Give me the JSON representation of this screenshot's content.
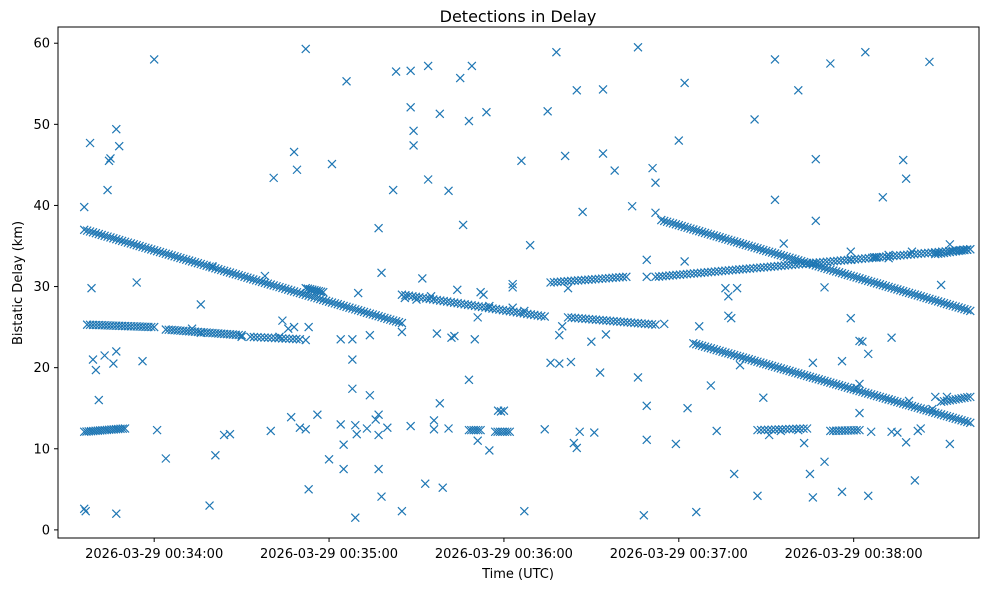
{
  "chart_data": {
    "type": "scatter",
    "title": "Detections in Delay",
    "xlabel": "Time (UTC)",
    "ylabel": "Bistatic Delay (km)",
    "marker": "x",
    "marker_color": "#1f77b4",
    "x_unit": "seconds after 2026-03-29 00:33:00",
    "xlim": [
      27,
      343
    ],
    "ylim": [
      -1,
      62
    ],
    "x_ticks": [
      {
        "value": 60,
        "label": "2026-03-29 00:34:00"
      },
      {
        "value": 120,
        "label": "2026-03-29 00:35:00"
      },
      {
        "value": 180,
        "label": "2026-03-29 00:36:00"
      },
      {
        "value": 240,
        "label": "2026-03-29 00:37:00"
      },
      {
        "value": 300,
        "label": "2026-03-29 00:38:00"
      }
    ],
    "y_ticks": [
      {
        "value": 0,
        "label": "0"
      },
      {
        "value": 10,
        "label": "10"
      },
      {
        "value": 20,
        "label": "20"
      },
      {
        "value": 30,
        "label": "30"
      },
      {
        "value": 40,
        "label": "40"
      },
      {
        "value": 50,
        "label": "50"
      },
      {
        "value": 60,
        "label": "60"
      }
    ],
    "tracks": [
      {
        "name": "track-a",
        "x_start": 36,
        "x_end": 145,
        "y_start": 37.0,
        "y_end": 25.5,
        "step": 1.0
      },
      {
        "name": "track-b",
        "x_start": 145,
        "x_end": 194,
        "y_start": 29.0,
        "y_end": 26.3,
        "step": 1.2
      },
      {
        "name": "track-c",
        "x_start": 234,
        "x_end": 340,
        "y_start": 38.2,
        "y_end": 27.0,
        "step": 1.0
      },
      {
        "name": "track-d",
        "x_start": 232,
        "x_end": 340,
        "y_start": 31.2,
        "y_end": 34.6,
        "step": 1.2
      },
      {
        "name": "track-e",
        "x_start": 245,
        "x_end": 340,
        "y_start": 23.0,
        "y_end": 13.2,
        "step": 1.0
      },
      {
        "name": "track-f",
        "x_start": 37,
        "x_end": 60,
        "y_start": 25.3,
        "y_end": 25.0,
        "step": 1.0
      },
      {
        "name": "track-g",
        "x_start": 64,
        "x_end": 90,
        "y_start": 24.7,
        "y_end": 24.0,
        "step": 1.0
      },
      {
        "name": "track-h",
        "x_start": 93,
        "x_end": 110,
        "y_start": 23.8,
        "y_end": 23.5,
        "step": 1.2
      },
      {
        "name": "track-i",
        "x_start": 36,
        "x_end": 50,
        "y_start": 12.1,
        "y_end": 12.5,
        "step": 0.8
      },
      {
        "name": "track-j",
        "x_start": 112,
        "x_end": 118,
        "y_start": 29.8,
        "y_end": 29.3,
        "step": 0.8
      },
      {
        "name": "track-k",
        "x_start": 168,
        "x_end": 172,
        "y_start": 12.3,
        "y_end": 12.3,
        "step": 0.8
      },
      {
        "name": "track-l",
        "x_start": 177,
        "x_end": 182,
        "y_start": 12.1,
        "y_end": 12.1,
        "step": 0.8
      },
      {
        "name": "track-m",
        "x_start": 196,
        "x_end": 222,
        "y_start": 30.5,
        "y_end": 31.2,
        "step": 1.2
      },
      {
        "name": "track-n",
        "x_start": 202,
        "x_end": 232,
        "y_start": 26.2,
        "y_end": 25.3,
        "step": 1.2
      },
      {
        "name": "track-o",
        "x_start": 267,
        "x_end": 284,
        "y_start": 12.3,
        "y_end": 12.5,
        "step": 1.2
      },
      {
        "name": "track-p",
        "x_start": 292,
        "x_end": 302,
        "y_start": 12.2,
        "y_end": 12.3,
        "step": 1.0
      },
      {
        "name": "track-q",
        "x_start": 328,
        "x_end": 340,
        "y_start": 34.0,
        "y_end": 34.6,
        "step": 1.0
      },
      {
        "name": "track-r",
        "x_start": 330,
        "x_end": 340,
        "y_start": 15.8,
        "y_end": 16.4,
        "step": 1.0
      }
    ],
    "scatter_points": [
      [
        36,
        39.8
      ],
      [
        36,
        2.6
      ],
      [
        36.5,
        2.3
      ],
      [
        38,
        47.7
      ],
      [
        39,
        21
      ],
      [
        40,
        19.7
      ],
      [
        38.5,
        29.8
      ],
      [
        41,
        16
      ],
      [
        43,
        21.5
      ],
      [
        44,
        41.9
      ],
      [
        44.5,
        45.5
      ],
      [
        45,
        45.8
      ],
      [
        46,
        20.5
      ],
      [
        47,
        22
      ],
      [
        47,
        49.4
      ],
      [
        48,
        47.3
      ],
      [
        47,
        2
      ],
      [
        54,
        30.5
      ],
      [
        56,
        20.8
      ],
      [
        60,
        58
      ],
      [
        61,
        12.3
      ],
      [
        64,
        8.8
      ],
      [
        79,
        3
      ],
      [
        81,
        9.2
      ],
      [
        80,
        32.5
      ],
      [
        84,
        11.7
      ],
      [
        86,
        11.8
      ],
      [
        76,
        27.8
      ],
      [
        73,
        24.8
      ],
      [
        76,
        24.3
      ],
      [
        90,
        23.8
      ],
      [
        98,
        31.3
      ],
      [
        101,
        43.4
      ],
      [
        100,
        12.2
      ],
      [
        106,
        24.8
      ],
      [
        107,
        13.9
      ],
      [
        108,
        46.6
      ],
      [
        109,
        44.4
      ],
      [
        110,
        12.6
      ],
      [
        108,
        25
      ],
      [
        104,
        25.8
      ],
      [
        103,
        23.8
      ],
      [
        112,
        59.3
      ],
      [
        112,
        12.4
      ],
      [
        113,
        5
      ],
      [
        112,
        23.4
      ],
      [
        113,
        25
      ],
      [
        116,
        14.2
      ],
      [
        120,
        8.7
      ],
      [
        121,
        45.1
      ],
      [
        124,
        13
      ],
      [
        125,
        10.5
      ],
      [
        126,
        55.3
      ],
      [
        125,
        7.5
      ],
      [
        124,
        23.5
      ],
      [
        128,
        23.5
      ],
      [
        128,
        21
      ],
      [
        128,
        17.4
      ],
      [
        129,
        12.9
      ],
      [
        129.5,
        11.8
      ],
      [
        130,
        29.2
      ],
      [
        129,
        1.5
      ],
      [
        133,
        12.5
      ],
      [
        134,
        16.6
      ],
      [
        134,
        24
      ],
      [
        136,
        13.6
      ],
      [
        137,
        7.5
      ],
      [
        137,
        11.7
      ],
      [
        137,
        37.2
      ],
      [
        137,
        14.2
      ],
      [
        138,
        31.7
      ],
      [
        138,
        4.1
      ],
      [
        140,
        12.6
      ],
      [
        142,
        41.9
      ],
      [
        143,
        56.5
      ],
      [
        145,
        2.3
      ],
      [
        145,
        24.4
      ],
      [
        146,
        28.6
      ],
      [
        148,
        56.6
      ],
      [
        148,
        52.1
      ],
      [
        149,
        49.2
      ],
      [
        149,
        47.4
      ],
      [
        148,
        12.8
      ],
      [
        150,
        28.4
      ],
      [
        152,
        31
      ],
      [
        153,
        5.7
      ],
      [
        154,
        43.2
      ],
      [
        154,
        57.2
      ],
      [
        155,
        28.8
      ],
      [
        156,
        12.4
      ],
      [
        156,
        13.5
      ],
      [
        157,
        24.2
      ],
      [
        158,
        15.6
      ],
      [
        158,
        51.3
      ],
      [
        159,
        5.2
      ],
      [
        161,
        41.8
      ],
      [
        162,
        23.7
      ],
      [
        163,
        23.9
      ],
      [
        161,
        12.5
      ],
      [
        164,
        29.6
      ],
      [
        165,
        55.7
      ],
      [
        166,
        37.6
      ],
      [
        168,
        18.5
      ],
      [
        168,
        50.4
      ],
      [
        169,
        57.2
      ],
      [
        170,
        23.5
      ],
      [
        171,
        11
      ],
      [
        171,
        26.2
      ],
      [
        172,
        29.3
      ],
      [
        173,
        29
      ],
      [
        174,
        51.5
      ],
      [
        175,
        9.8
      ],
      [
        175,
        27.6
      ],
      [
        178,
        14.7
      ],
      [
        179,
        14.6
      ],
      [
        180,
        14.7
      ],
      [
        183,
        29.9
      ],
      [
        183,
        30.3
      ],
      [
        186,
        45.5
      ],
      [
        187,
        2.3
      ],
      [
        189,
        35.1
      ],
      [
        183,
        27.4
      ],
      [
        187,
        27
      ],
      [
        194,
        12.4
      ],
      [
        195,
        51.6
      ],
      [
        196,
        20.6
      ],
      [
        199,
        24
      ],
      [
        199,
        20.5
      ],
      [
        198,
        58.9
      ],
      [
        200,
        25.1
      ],
      [
        201,
        46.1
      ],
      [
        202,
        29.8
      ],
      [
        203,
        20.7
      ],
      [
        204,
        10.7
      ],
      [
        205,
        54.2
      ],
      [
        205,
        10.1
      ],
      [
        207,
        39.2
      ],
      [
        206,
        12.1
      ],
      [
        210,
        23.2
      ],
      [
        211,
        12
      ],
      [
        214,
        46.4
      ],
      [
        213,
        19.4
      ],
      [
        214,
        54.3
      ],
      [
        215,
        24.1
      ],
      [
        218,
        44.3
      ],
      [
        224,
        39.9
      ],
      [
        226,
        18.8
      ],
      [
        226,
        59.5
      ],
      [
        228,
        1.8
      ],
      [
        229,
        11.1
      ],
      [
        229,
        15.3
      ],
      [
        229,
        31.2
      ],
      [
        229,
        33.3
      ],
      [
        231,
        44.6
      ],
      [
        232,
        42.8
      ],
      [
        232,
        39.1
      ],
      [
        235,
        25.4
      ],
      [
        239,
        10.6
      ],
      [
        240,
        48
      ],
      [
        242,
        33.1
      ],
      [
        242,
        55.1
      ],
      [
        243,
        15
      ],
      [
        246,
        2.2
      ],
      [
        247,
        25.1
      ],
      [
        251,
        17.8
      ],
      [
        253,
        12.2
      ],
      [
        256,
        29.8
      ],
      [
        257,
        28.8
      ],
      [
        257,
        26.4
      ],
      [
        258,
        26.1
      ],
      [
        259,
        6.9
      ],
      [
        260,
        29.8
      ],
      [
        261,
        20.3
      ],
      [
        266,
        50.6
      ],
      [
        267,
        4.2
      ],
      [
        269,
        16.3
      ],
      [
        271,
        11.7
      ],
      [
        273,
        40.7
      ],
      [
        273,
        58
      ],
      [
        275,
        12.2
      ],
      [
        276,
        35.3
      ],
      [
        281,
        12.3
      ],
      [
        281,
        54.2
      ],
      [
        283,
        10.7
      ],
      [
        285,
        6.9
      ],
      [
        286,
        4
      ],
      [
        286,
        20.6
      ],
      [
        287,
        38.1
      ],
      [
        287,
        45.7
      ],
      [
        290,
        8.4
      ],
      [
        290,
        29.9
      ],
      [
        292,
        57.5
      ],
      [
        296,
        4.7
      ],
      [
        296,
        20.8
      ],
      [
        299,
        33.3
      ],
      [
        299,
        34.3
      ],
      [
        299,
        26.1
      ],
      [
        301,
        17.5
      ],
      [
        302,
        18
      ],
      [
        302,
        14.4
      ],
      [
        302,
        23.3
      ],
      [
        303,
        23.2
      ],
      [
        304,
        58.9
      ],
      [
        305,
        21.7
      ],
      [
        305,
        4.2
      ],
      [
        306,
        12.1
      ],
      [
        307,
        33.6
      ],
      [
        308,
        33.6
      ],
      [
        310,
        41
      ],
      [
        312,
        33.9
      ],
      [
        312,
        33.5
      ],
      [
        312,
        16.1
      ],
      [
        313,
        12.1
      ],
      [
        313,
        23.7
      ],
      [
        315,
        12
      ],
      [
        317,
        45.6
      ],
      [
        318,
        43.3
      ],
      [
        318,
        10.8
      ],
      [
        319,
        15.9
      ],
      [
        320,
        34.3
      ],
      [
        321,
        6.1
      ],
      [
        322,
        12.2
      ],
      [
        323,
        12.5
      ],
      [
        326,
        57.7
      ],
      [
        327,
        14.9
      ],
      [
        328,
        16.4
      ],
      [
        330,
        30.2
      ],
      [
        332,
        16.4
      ],
      [
        333,
        35.2
      ],
      [
        333,
        10.6
      ]
    ]
  }
}
